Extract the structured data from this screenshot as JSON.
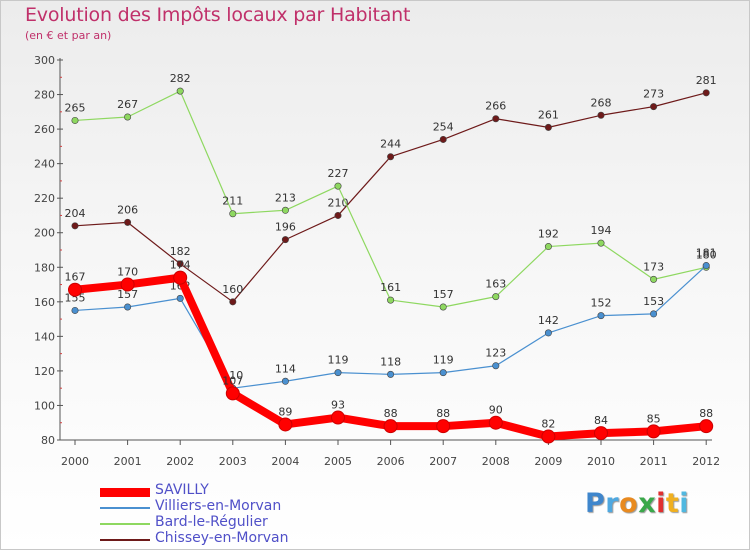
{
  "chart_data": {
    "type": "line",
    "title": "Evolution des Impôts locaux par Habitant",
    "subtitle": "(en € et par an)",
    "x": [
      "2000",
      "2001",
      "2002",
      "2003",
      "2004",
      "2005",
      "2006",
      "2007",
      "2008",
      "2009",
      "2010",
      "2011",
      "2012"
    ],
    "ylim": [
      80,
      300
    ],
    "yticks": [
      80,
      100,
      120,
      140,
      160,
      180,
      200,
      220,
      240,
      260,
      280,
      300
    ],
    "grid": false,
    "legend_position": "bottom-left",
    "series": [
      {
        "name": "SAVILLY",
        "color": "#ff0000",
        "values": [
          167,
          170,
          174,
          107,
          89,
          93,
          88,
          88,
          90,
          82,
          84,
          85,
          88
        ]
      },
      {
        "name": "Villiers-en-Morvan",
        "color": "#4a90d0",
        "values": [
          155,
          157,
          162,
          110,
          114,
          119,
          118,
          119,
          123,
          142,
          152,
          153,
          181
        ]
      },
      {
        "name": "Bard-le-Régulier",
        "color": "#8ed860",
        "values": [
          265,
          267,
          282,
          211,
          213,
          227,
          161,
          157,
          163,
          192,
          194,
          173,
          180
        ]
      },
      {
        "name": "Chissey-en-Morvan",
        "color": "#6e1a1a",
        "values": [
          204,
          206,
          182,
          160,
          196,
          210,
          244,
          254,
          266,
          261,
          268,
          273,
          281
        ]
      }
    ]
  },
  "logo": {
    "letters": [
      "P",
      "r",
      "o",
      "x",
      "i",
      "t",
      "i"
    ],
    "colors": [
      "#3f86cc",
      "#4fa8e0",
      "#e88a20",
      "#3aa84a",
      "#e03030",
      "#f0b020",
      "#50b8e0"
    ]
  }
}
